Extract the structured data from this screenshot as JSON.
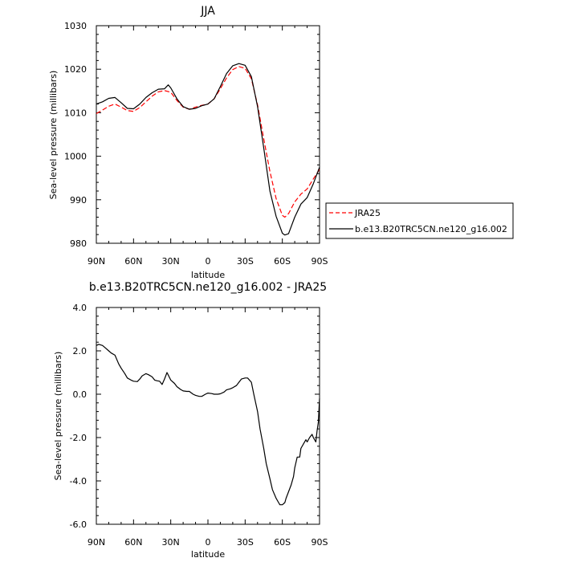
{
  "chart_data": [
    {
      "type": "line",
      "title": "JJA",
      "xlabel": "latitude",
      "ylabel": "Sea-level pressure (millibars)",
      "x_tick_labels": [
        "90N",
        "60N",
        "30N",
        "0",
        "30S",
        "60S",
        "90S"
      ],
      "x_ticks": [
        90,
        60,
        30,
        0,
        -30,
        -60,
        -90
      ],
      "xlim": [
        90,
        -90
      ],
      "ylim": [
        980,
        1030
      ],
      "y_ticks": [
        980,
        990,
        1000,
        1010,
        1020,
        1030
      ],
      "y_tick_labels": [
        "980",
        "990",
        "1000",
        "1010",
        "1020",
        "1030"
      ],
      "grid": false,
      "legend_placement": "right-outside",
      "series": [
        {
          "name": "JRA25",
          "color": "#ff0000",
          "dash": "dashed",
          "x": [
            90,
            85,
            80,
            75,
            70,
            65,
            60,
            55,
            50,
            45,
            40,
            35,
            30,
            25,
            20,
            15,
            10,
            5,
            0,
            -5,
            -10,
            -15,
            -20,
            -25,
            -30,
            -35,
            -40,
            -45,
            -50,
            -55,
            -60,
            -62,
            -65,
            -70,
            -75,
            -80,
            -85,
            -90
          ],
          "values": [
            1009.8,
            1010.6,
            1011.5,
            1012.0,
            1011.3,
            1010.5,
            1010.3,
            1011.2,
            1012.5,
            1013.8,
            1014.8,
            1015.1,
            1014.7,
            1012.8,
            1011.3,
            1010.8,
            1011.3,
            1011.7,
            1012.0,
            1013.2,
            1015.5,
            1018.0,
            1019.9,
            1020.6,
            1020.2,
            1017.8,
            1011.8,
            1004.0,
            996.5,
            990.3,
            986.4,
            986.0,
            986.8,
            989.5,
            991.3,
            992.5,
            994.8,
            997.0
          ]
        },
        {
          "name": "b.e13.B20TRC5CN.ne120_g16.002",
          "color": "#000000",
          "dash": "solid",
          "x": [
            90,
            85,
            80,
            75,
            70,
            65,
            60,
            55,
            50,
            45,
            40,
            35,
            32,
            30,
            25,
            20,
            15,
            10,
            5,
            0,
            -5,
            -10,
            -15,
            -20,
            -25,
            -30,
            -35,
            -40,
            -45,
            -50,
            -55,
            -60,
            -62,
            -65,
            -70,
            -75,
            -80,
            -85,
            -90
          ],
          "values": [
            1012.0,
            1012.5,
            1013.3,
            1013.5,
            1012.3,
            1011.0,
            1010.9,
            1012.0,
            1013.5,
            1014.6,
            1015.4,
            1015.5,
            1016.4,
            1015.7,
            1013.2,
            1011.4,
            1010.8,
            1011.0,
            1011.6,
            1012.0,
            1013.2,
            1016.0,
            1019.0,
            1020.8,
            1021.3,
            1020.9,
            1018.3,
            1011.4,
            1001.9,
            992.0,
            986.2,
            982.3,
            981.9,
            982.2,
            986.0,
            989.0,
            990.5,
            993.7,
            997.5
          ]
        }
      ]
    },
    {
      "type": "line",
      "title": "b.e13.B20TRC5CN.ne120_g16.002 - JRA25",
      "xlabel": "latitude",
      "ylabel": "Sea-level pressure (millibars)",
      "x_tick_labels": [
        "90N",
        "60N",
        "30N",
        "0",
        "30S",
        "60S",
        "90S"
      ],
      "x_ticks": [
        90,
        60,
        30,
        0,
        -30,
        -60,
        -90
      ],
      "xlim": [
        90,
        -90
      ],
      "ylim": [
        -6,
        4
      ],
      "y_ticks": [
        -6,
        -4,
        -2,
        0,
        2,
        4
      ],
      "y_tick_labels": [
        "-6.0",
        "-4.0",
        "-2.0",
        "0.0",
        "2.0",
        "4.0"
      ],
      "grid": false,
      "series": [
        {
          "color": "#000000",
          "dash": "solid",
          "x": [
            90,
            88,
            85,
            83,
            80,
            78,
            75,
            72,
            70,
            67,
            65,
            62,
            60,
            57,
            55,
            53,
            50,
            48,
            45,
            43,
            41,
            39,
            37,
            35,
            33,
            30,
            27,
            25,
            22,
            20,
            17,
            15,
            12,
            10,
            7,
            5,
            2,
            0,
            -3,
            -5,
            -8,
            -10,
            -13,
            -15,
            -18,
            -20,
            -23,
            -25,
            -27,
            -30,
            -32,
            -35,
            -37,
            -40,
            -42,
            -45,
            -47,
            -50,
            -52,
            -55,
            -57,
            -58,
            -60,
            -62,
            -63,
            -65,
            -67,
            -69,
            -70,
            -72,
            -74,
            -75,
            -77,
            -79,
            -80,
            -82,
            -84,
            -85,
            -87,
            -88,
            -89,
            -90
          ],
          "values": [
            2.25,
            2.3,
            2.25,
            2.15,
            2.0,
            1.9,
            1.8,
            1.4,
            1.2,
            0.95,
            0.75,
            0.65,
            0.6,
            0.58,
            0.7,
            0.85,
            0.95,
            0.9,
            0.8,
            0.65,
            0.62,
            0.6,
            0.45,
            0.7,
            1.0,
            0.65,
            0.5,
            0.35,
            0.22,
            0.15,
            0.13,
            0.13,
            0.0,
            -0.05,
            -0.1,
            -0.1,
            0.0,
            0.05,
            0.03,
            0.0,
            0.0,
            0.02,
            0.1,
            0.2,
            0.25,
            0.3,
            0.4,
            0.55,
            0.7,
            0.75,
            0.75,
            0.55,
            0.0,
            -0.8,
            -1.6,
            -2.5,
            -3.2,
            -3.9,
            -4.4,
            -4.8,
            -5.0,
            -5.1,
            -5.1,
            -5.0,
            -4.8,
            -4.5,
            -4.2,
            -3.8,
            -3.4,
            -2.9,
            -2.9,
            -2.5,
            -2.3,
            -2.1,
            -2.2,
            -2.0,
            -1.85,
            -2.0,
            -2.2,
            -1.7,
            -1.3,
            -0.2
          ]
        }
      ]
    }
  ]
}
